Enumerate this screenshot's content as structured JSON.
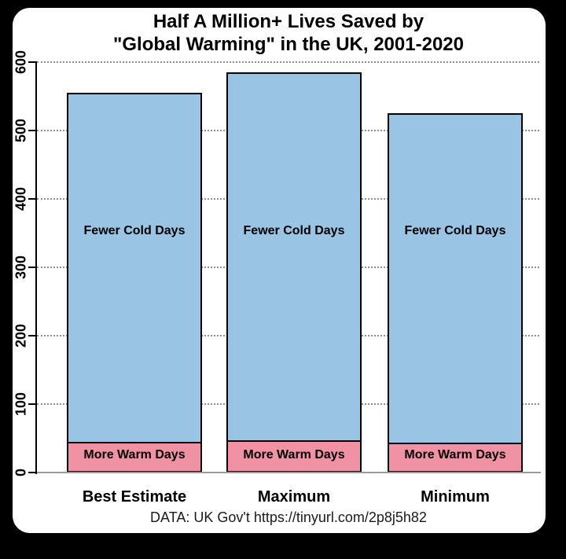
{
  "page": {
    "background_color": "#000000",
    "panel_color": "#ffffff"
  },
  "title": {
    "line1": "Half A Million+ Lives Saved by",
    "line2": "\"Global Warming\" in the UK, 2001-2020"
  },
  "caption": "DATA: UK Gov't https://tinyurl.com/2p8j5h82",
  "chart_data": {
    "type": "bar",
    "stacked": true,
    "title": "Half A Million+ Lives Saved by \"Global Warming\" in the UK, 2001-2020",
    "categories": [
      "Best Estimate",
      "Maximum",
      "Minimum"
    ],
    "series": [
      {
        "name": "More Warm Days",
        "color": "#F192A4",
        "values": [
          45,
          47,
          44
        ]
      },
      {
        "name": "Fewer Cold Days",
        "color": "#99C4E4",
        "values": [
          510,
          538,
          481
        ]
      }
    ],
    "totals": [
      555,
      585,
      525
    ],
    "xlabel": "",
    "ylabel": "",
    "ylim": [
      0,
      600
    ],
    "yticks": [
      0,
      100,
      200,
      300,
      400,
      500,
      600
    ],
    "grid": {
      "horizontal": true,
      "style": "dotted",
      "color": "#8c8c8c"
    },
    "legend_position": "none (series names printed inside bar segments)",
    "bar_outline_color": "#000000",
    "tick_label_rotation_deg": -90
  }
}
